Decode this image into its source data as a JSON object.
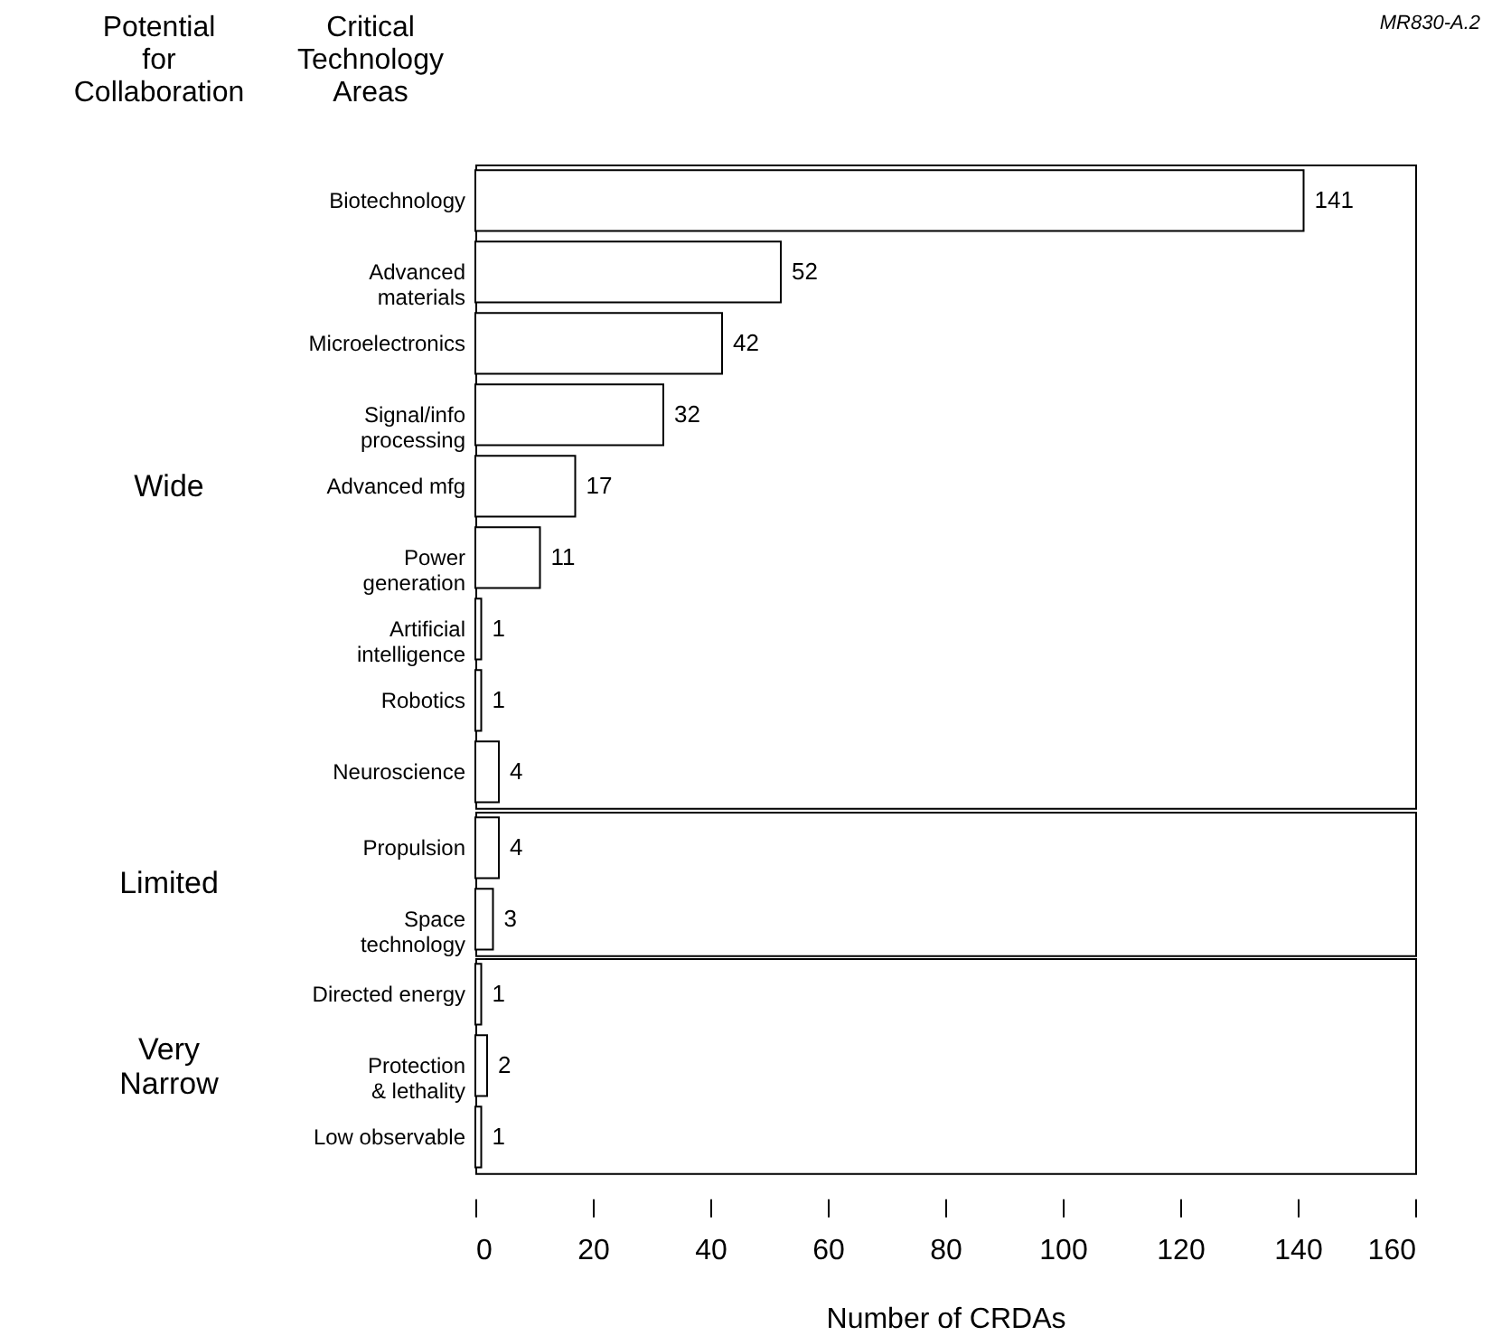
{
  "chart_data": [
    {
      "type": "bar",
      "orientation": "horizontal",
      "ylabel": "Wide",
      "categories": [
        "Biotechnology",
        "Advanced\nmaterials",
        "Microelectronics",
        "Signal/info\nprocessing",
        "Advanced mfg",
        "Power\ngeneration",
        "Artificial\nintelligence",
        "Robotics",
        "Neuroscience"
      ],
      "values": [
        141,
        52,
        42,
        32,
        17,
        11,
        1,
        1,
        4
      ],
      "color": "#ffffff",
      "data_labels": true,
      "xlim": [
        0,
        160
      ],
      "tick_labels": "y",
      "annotations": [
        "Potential\nfor\nCollaboration",
        "Critical\nTechnology\nAreas",
        "MR830-A.2"
      ]
    },
    {
      "type": "bar",
      "orientation": "horizontal",
      "ylabel": "Limited",
      "categories": [
        "Propulsion",
        "Space\ntechnology"
      ],
      "values": [
        4,
        3
      ],
      "color": "#ffffff",
      "data_labels": true,
      "xlim": [
        0,
        160
      ],
      "tick_labels": "y"
    },
    {
      "type": "bar",
      "orientation": "horizontal",
      "ylabel": "Very\nNarrow",
      "xlabel": "Number of CRDAs",
      "categories": [
        "Directed energy",
        "Protection\n& lethality",
        "Low observable"
      ],
      "values": [
        1,
        2,
        1
      ],
      "color": "#ffffff",
      "data_labels": true,
      "xlim": [
        0,
        160
      ],
      "xticks": [
        0,
        20,
        40,
        60,
        80,
        100,
        120,
        140,
        160
      ]
    }
  ]
}
